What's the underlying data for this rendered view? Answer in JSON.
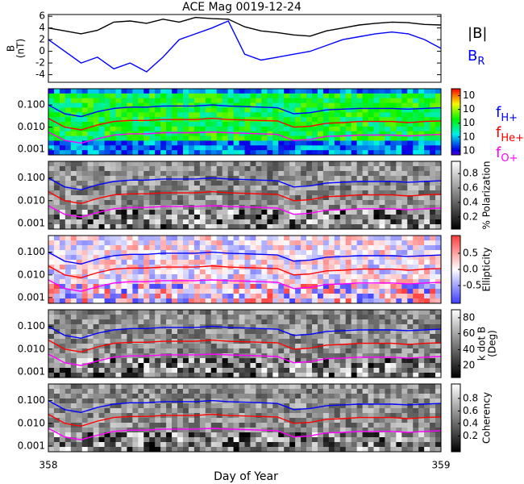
{
  "title": "ACE Mag 0019-12-24",
  "x_label": "Day of Year",
  "chart_data": {
    "type": "multi-panel",
    "xlim": [
      358,
      359
    ],
    "xticks": [
      358,
      359
    ],
    "x": [
      358,
      358.0417,
      358.0833,
      358.125,
      358.1667,
      358.2083,
      358.25,
      358.2917,
      358.3333,
      358.375,
      358.4167,
      358.4583,
      358.5,
      358.5417,
      358.5833,
      358.625,
      358.6667,
      358.7083,
      358.75,
      358.7917,
      358.8333,
      358.875,
      358.9167,
      358.9583,
      359
    ],
    "field_panel": {
      "type": "line",
      "y_label": "B",
      "y_unit": "(nT)",
      "ylim": [
        -5.3,
        6.3
      ],
      "yticks": [
        -4,
        -2,
        0,
        2,
        4,
        6
      ],
      "series": [
        {
          "name": "|B|",
          "color": "#000000",
          "values": [
            4,
            3.5,
            3,
            3.6,
            5,
            5.2,
            4.8,
            5.5,
            5,
            5.8,
            5.6,
            5.5,
            4.2,
            3.5,
            3.2,
            2.8,
            2.6,
            3.5,
            4,
            4.5,
            4.8,
            5,
            4.9,
            4.6,
            4.5
          ]
        },
        {
          "name": "B",
          "name_sub": "R",
          "color": "#0000ff",
          "values": [
            2,
            0,
            -2,
            -1,
            -3,
            -2,
            -3.5,
            -1,
            2,
            3,
            4,
            5.2,
            -0.5,
            -1.5,
            -1,
            -0.5,
            0,
            1,
            2,
            2.5,
            3,
            3.3,
            3,
            2,
            0.5
          ]
        }
      ]
    },
    "wave_panels": {
      "type": "spectrogram",
      "log_y": true,
      "ylim": [
        0.00056,
        0.54
      ],
      "yticks": [
        {
          "value": 0.1,
          "label": "0.100"
        },
        {
          "value": 0.01,
          "label": "0.010"
        },
        0.001
      ],
      "panels": [
        {
          "colormap": "rainbow",
          "colorbar_label": [],
          "clim": [
            -6.3,
            -1.5
          ],
          "cticks": [
            {
              "value": -2,
              "label": "10"
            },
            {
              "value": -3,
              "label": "10"
            },
            {
              "value": -4,
              "label": "10"
            },
            {
              "value": -5,
              "label": "10"
            },
            {
              "value": -6,
              "label": "10"
            }
          ]
        },
        {
          "colormap": "gray",
          "colorbar_label": [
            "% Polarization"
          ],
          "clim": [
            0.03,
            0.97
          ],
          "cticks": [
            0.2,
            0.4,
            0.6,
            0.8
          ]
        },
        {
          "colormap": "bwr",
          "colorbar_label": [
            "Ellipticity"
          ],
          "clim": [
            -1.05,
            1.05
          ],
          "cticks": [
            -0.5,
            {
              "value": 0,
              "label": "0.0"
            },
            0.5
          ]
        },
        {
          "colormap": "gray",
          "colorbar_label": [
            "k dot B",
            "(Deg)"
          ],
          "clim": [
            5,
            90
          ],
          "cticks": [
            20,
            40,
            60,
            80
          ]
        },
        {
          "colormap": "gray",
          "colorbar_label": [
            "Coherency"
          ],
          "clim": [
            -0.05,
            1.03
          ],
          "cticks": [
            0.2,
            0.4,
            0.6,
            0.8
          ]
        }
      ]
    },
    "frequency_series": [
      {
        "name": "f",
        "name_sub": "H+",
        "color": "#0000ff",
        "values": [
          0.1,
          0.04,
          0.03,
          0.05,
          0.07,
          0.08,
          0.08,
          0.09,
          0.09,
          0.09,
          0.1,
          0.09,
          0.085,
          0.08,
          0.075,
          0.04,
          0.045,
          0.06,
          0.065,
          0.07,
          0.07,
          0.07,
          0.065,
          0.07,
          0.075
        ]
      },
      {
        "name": "f",
        "name_sub": "He+",
        "color": "#ff0000",
        "values": [
          0.025,
          0.01,
          0.0075,
          0.0125,
          0.018,
          0.02,
          0.02,
          0.022,
          0.022,
          0.022,
          0.025,
          0.022,
          0.021,
          0.02,
          0.019,
          0.01,
          0.011,
          0.015,
          0.016,
          0.018,
          0.018,
          0.018,
          0.016,
          0.018,
          0.019
        ]
      },
      {
        "name": "f",
        "name_sub": "O+",
        "color": "#ff00ff",
        "values": [
          0.006,
          0.0025,
          0.0019,
          0.003,
          0.0044,
          0.005,
          0.005,
          0.0056,
          0.0056,
          0.0056,
          0.006,
          0.0056,
          0.0053,
          0.005,
          0.0047,
          0.0025,
          0.0028,
          0.0038,
          0.004,
          0.0044,
          0.0044,
          0.0044,
          0.004,
          0.0044,
          0.0047
        ]
      }
    ]
  }
}
